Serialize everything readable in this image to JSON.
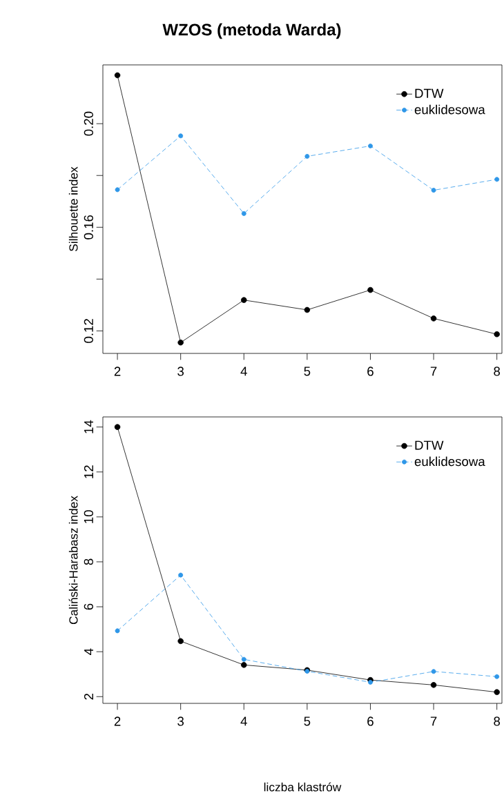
{
  "chart_data": [
    {
      "type": "line",
      "title": "WZOS (metoda Warda)",
      "ylabel": "Silhouette index",
      "x": [
        2,
        3,
        4,
        5,
        6,
        7,
        8
      ],
      "xlim": [
        1.77,
        8.08
      ],
      "xticks": [
        2,
        3,
        4,
        5,
        6,
        7,
        8
      ],
      "ylim": [
        0.1113,
        0.2227
      ],
      "yticks": [
        0.12,
        {
          "value": 0.14,
          "label": null
        },
        0.16,
        {
          "value": 0.18,
          "label": null
        },
        {
          "value": 0.2,
          "label": "0.20"
        }
      ],
      "legend": "top right",
      "marker": "circle",
      "series": [
        {
          "name": "DTW",
          "color": "#000000",
          "line_style": "solid",
          "values": [
            0.2187,
            0.1155,
            0.1319,
            0.1281,
            0.1358,
            0.1248,
            0.1187
          ]
        },
        {
          "name": "euklidesowa",
          "color": "#2f97e8",
          "line_style": "dashed",
          "values": [
            0.1745,
            0.1953,
            0.1653,
            0.1874,
            0.1914,
            0.1743,
            0.1785
          ]
        }
      ]
    },
    {
      "type": "line",
      "xlabel": "liczba klastrów",
      "ylabel": "Caliński-Harabasz index",
      "x": [
        2,
        3,
        4,
        5,
        6,
        7,
        8
      ],
      "xlim": [
        1.77,
        8.08
      ],
      "xticks": [
        2,
        3,
        4,
        5,
        6,
        7,
        8
      ],
      "ylim": [
        1.7,
        14.45
      ],
      "yticks": [
        2,
        4,
        6,
        8,
        10,
        12,
        14
      ],
      "legend": "top right",
      "marker": "circle",
      "series": [
        {
          "name": "DTW",
          "color": "#000000",
          "line_style": "solid",
          "values": [
            14.0,
            4.47,
            3.41,
            3.18,
            2.74,
            2.52,
            2.2
          ]
        },
        {
          "name": "euklidesowa",
          "color": "#2f97e8",
          "line_style": "dashed",
          "values": [
            4.93,
            7.41,
            3.66,
            3.13,
            2.64,
            3.12,
            2.89
          ]
        }
      ]
    }
  ]
}
